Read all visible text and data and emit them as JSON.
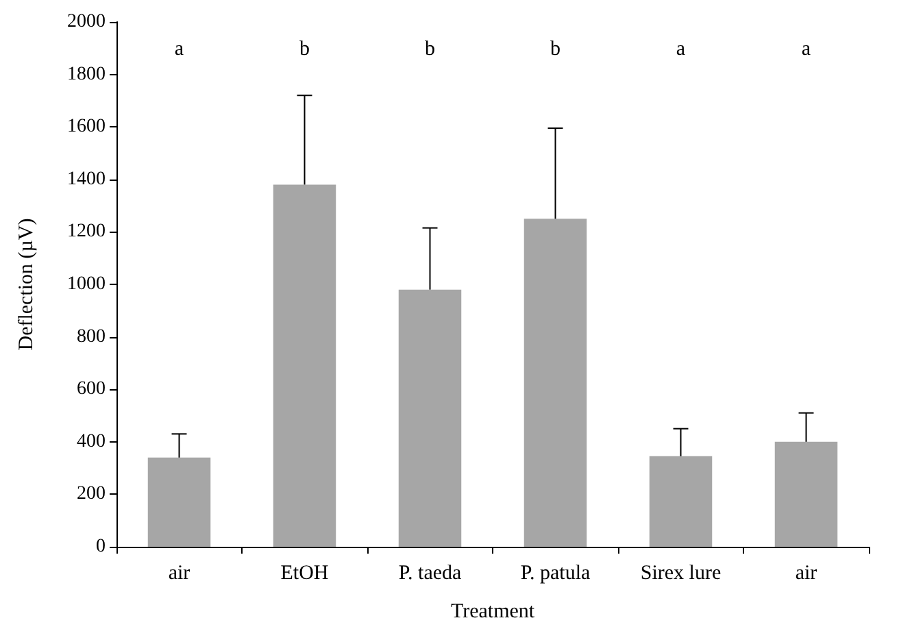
{
  "chart_data": {
    "type": "bar",
    "xlabel": "Treatment",
    "ylabel": "Deflection (µV)",
    "categories": [
      "air",
      "EtOH",
      "P. taeda",
      "P. patula",
      "Sirex lure",
      "air"
    ],
    "values": [
      340,
      1380,
      980,
      1250,
      345,
      400
    ],
    "errors": [
      [
        340,
        430
      ],
      [
        1380,
        1720
      ],
      [
        980,
        1215
      ],
      [
        1250,
        1595
      ],
      [
        345,
        450
      ],
      [
        400,
        510
      ]
    ],
    "color": "#a6a6a6",
    "ylim": [
      0,
      2000
    ],
    "yticks": [
      0,
      200,
      400,
      600,
      800,
      1000,
      1200,
      1400,
      1600,
      1800,
      2000
    ],
    "grid": false,
    "annotations": [
      "a",
      "b",
      "b",
      "b",
      "a",
      "a"
    ]
  }
}
